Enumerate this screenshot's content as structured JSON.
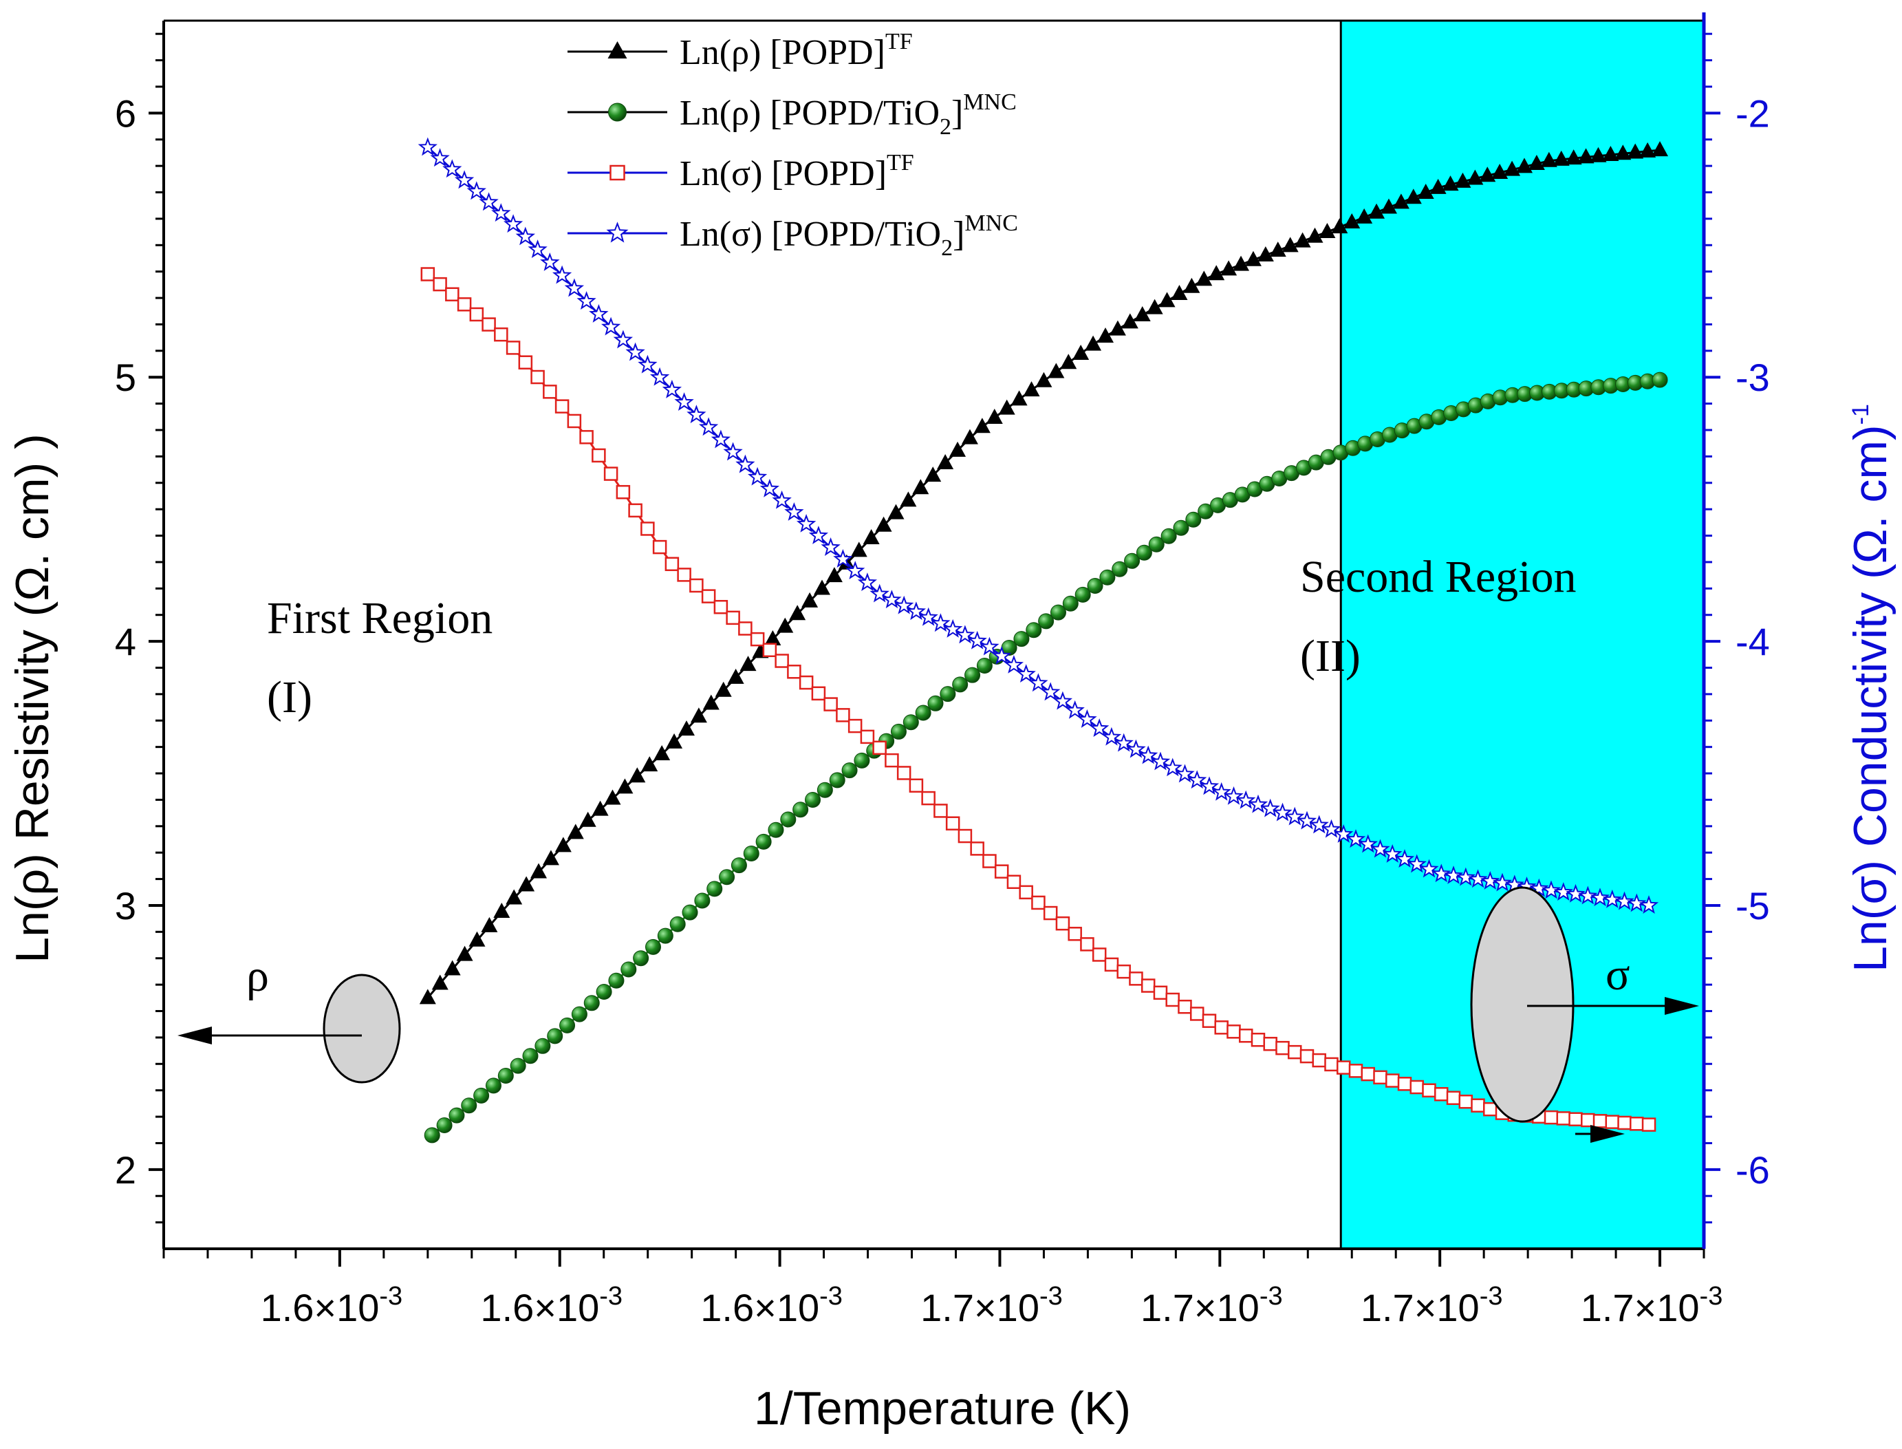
{
  "chart_data": {
    "type": "line",
    "title": "",
    "xlabel": "1/Temperature (K)",
    "ylabel_left": "Ln(ρ) Resistivity (Ω. cm) )",
    "ylabel_right": "Ln(σ) Conductivity (Ω. cm)",
    "ylabel_right_sup": "-1",
    "x_tick_labels": [
      "1.6×10",
      "1.6×10",
      "1.6×10",
      "1.7×10",
      "1.7×10",
      "1.7×10",
      "1.7×10"
    ],
    "x_tick_exponent": "-3",
    "left_ticks": [
      2,
      3,
      4,
      5,
      6
    ],
    "right_ticks": [
      -2,
      -3,
      -4,
      -5,
      -6
    ],
    "left_ylim": [
      1.7,
      6.35
    ],
    "right_ylim": [
      -6.3,
      -1.65
    ],
    "index_range": [
      -0.8,
      6.2
    ],
    "legend_position": "top-center",
    "legend": [
      {
        "key": "rho_tf",
        "text": "Ln(ρ) [POPD]",
        "sub": "",
        "tail": "",
        "sup": "TF"
      },
      {
        "key": "rho_mnc",
        "text": "Ln(ρ) [POPD/TiO",
        "sub": "2",
        "tail": "]",
        "sup": "MNC"
      },
      {
        "key": "sigma_tf",
        "text": "Ln(σ) [POPD]",
        "sub": "",
        "tail": "",
        "sup": "TF"
      },
      {
        "key": "sigma_mnc",
        "text": "Ln(σ) [POPD/TiO",
        "sub": "2",
        "tail": "]",
        "sup": "MNC"
      }
    ],
    "series": [
      {
        "key": "rho_tf",
        "name": "Ln(ρ) [POPD]TF",
        "axis": "left",
        "marker": "triangle",
        "color": "#000000",
        "x_range": [
          0.4,
          6.0
        ],
        "knots": [
          [
            0.4,
            2.65
          ],
          [
            0.75,
            2.99
          ],
          [
            1.1,
            3.3
          ],
          [
            1.5,
            3.6
          ],
          [
            1.9,
            3.95
          ],
          [
            2.45,
            4.42
          ],
          [
            2.9,
            4.8
          ],
          [
            3.45,
            5.14
          ],
          [
            3.95,
            5.38
          ],
          [
            4.55,
            5.57
          ],
          [
            5.0,
            5.72
          ],
          [
            5.5,
            5.82
          ],
          [
            6.0,
            5.86
          ]
        ]
      },
      {
        "key": "rho_mnc",
        "name": "Ln(ρ) [POPD/TiO2]MNC",
        "axis": "left",
        "marker": "sphere",
        "color": "#1f8a1f",
        "x_range": [
          0.42,
          6.0
        ],
        "knots": [
          [
            0.42,
            2.13
          ],
          [
            1.0,
            2.52
          ],
          [
            1.5,
            2.9
          ],
          [
            2.0,
            3.3
          ],
          [
            2.45,
            3.6
          ],
          [
            2.95,
            3.92
          ],
          [
            3.45,
            4.22
          ],
          [
            3.95,
            4.5
          ],
          [
            4.5,
            4.7
          ],
          [
            5.0,
            4.85
          ],
          [
            5.3,
            4.93
          ],
          [
            5.7,
            4.96
          ],
          [
            6.0,
            4.99
          ]
        ]
      },
      {
        "key": "sigma_tf",
        "name": "Ln(σ) [POPD]TF",
        "axis": "right",
        "marker": "square",
        "color": "#e0211c",
        "x_range": [
          0.4,
          5.95
        ],
        "knots": [
          [
            0.4,
            -2.61
          ],
          [
            0.75,
            -2.85
          ],
          [
            1.1,
            -3.2
          ],
          [
            1.5,
            -3.7
          ],
          [
            1.95,
            -4.03
          ],
          [
            2.45,
            -4.4
          ],
          [
            2.95,
            -4.83
          ],
          [
            3.5,
            -5.22
          ],
          [
            4.0,
            -5.46
          ],
          [
            4.5,
            -5.6
          ],
          [
            4.95,
            -5.7
          ],
          [
            5.3,
            -5.79
          ],
          [
            5.95,
            -5.83
          ]
        ]
      },
      {
        "key": "sigma_mnc",
        "name": "Ln(σ) [POPD/TiO2]MNC",
        "axis": "right",
        "marker": "star",
        "color": "#0b0bd6",
        "x_range": [
          0.4,
          5.95
        ],
        "knots": [
          [
            0.4,
            -2.13
          ],
          [
            0.8,
            -2.43
          ],
          [
            1.3,
            -2.87
          ],
          [
            1.9,
            -3.38
          ],
          [
            2.45,
            -3.82
          ],
          [
            2.95,
            -4.02
          ],
          [
            3.5,
            -4.36
          ],
          [
            4.0,
            -4.57
          ],
          [
            4.5,
            -4.71
          ],
          [
            5.0,
            -4.88
          ],
          [
            5.4,
            -4.93
          ],
          [
            5.95,
            -5.0
          ]
        ]
      }
    ],
    "annotations": {
      "region1_title": "First Region",
      "region1_label": "(I)",
      "region2_title": "Second Region",
      "region2_label": "(II)",
      "rho_symbol": "ρ",
      "sigma_symbol": "σ",
      "region2_start_index": 4.55,
      "region2_color": "#00ffff"
    }
  }
}
